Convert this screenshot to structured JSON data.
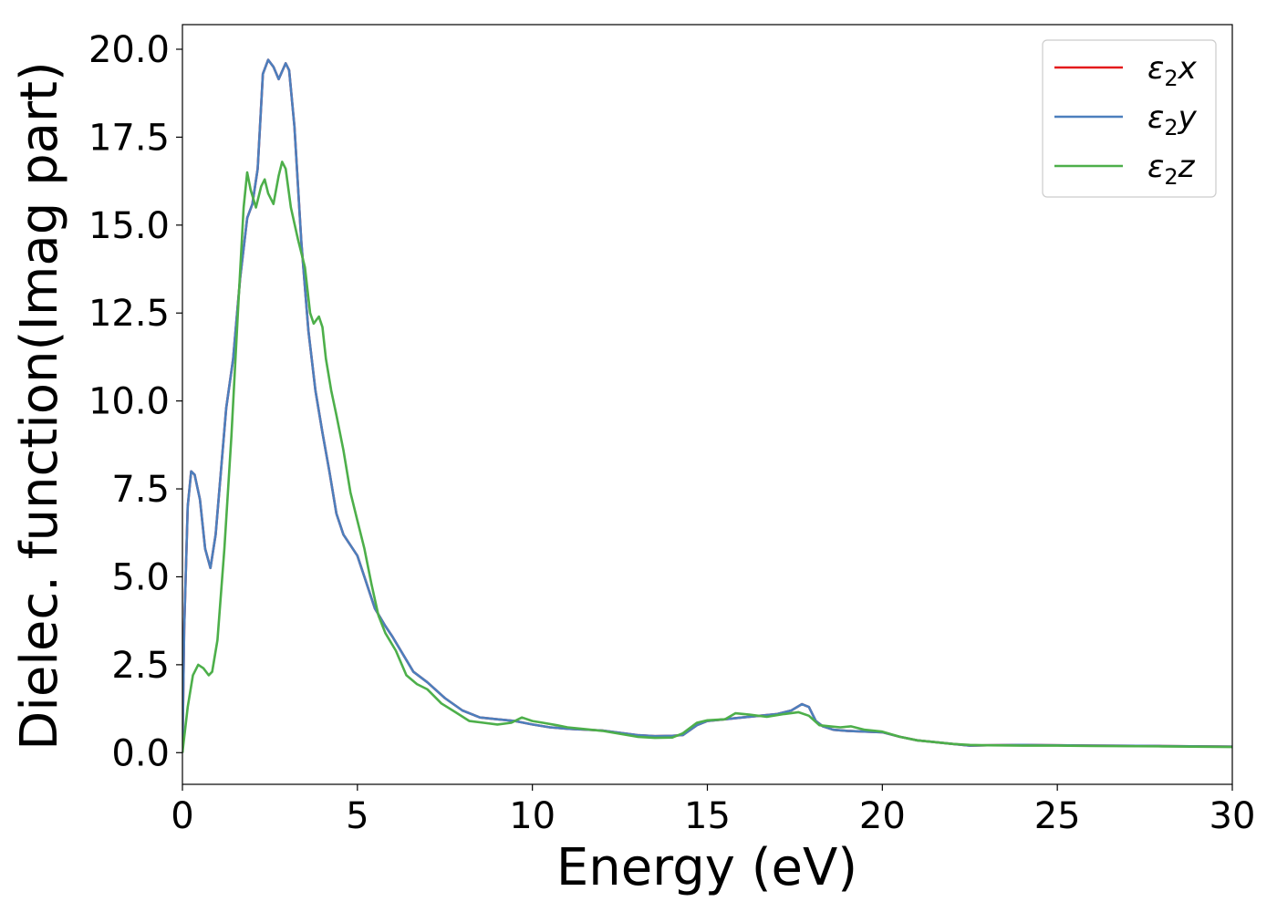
{
  "chart_data": {
    "type": "line",
    "title": "",
    "xlabel": "Energy (eV)",
    "ylabel": "Dielec. function(Imag part)",
    "xlim": [
      0,
      30
    ],
    "ylim": [
      -0.9,
      20.7
    ],
    "xticks": [
      0,
      5,
      10,
      15,
      20,
      25,
      30
    ],
    "xtick_labels": [
      "0",
      "5",
      "10",
      "15",
      "20",
      "25",
      "30"
    ],
    "yticks": [
      0,
      2.5,
      5,
      7.5,
      10,
      12.5,
      15,
      17.5,
      20
    ],
    "ytick_labels": [
      "0.0",
      "2.5",
      "5.0",
      "7.5",
      "10.0",
      "12.5",
      "15.0",
      "17.5",
      "20.0"
    ],
    "grid": false,
    "legend_position": "top-right",
    "series": [
      {
        "name": "ε₂x",
        "legend_main": "ε",
        "legend_sub": "2",
        "legend_axis": "x",
        "color": "#e41a1c",
        "points": [
          [
            0.0,
            0.0
          ],
          [
            0.05,
            3.5
          ],
          [
            0.15,
            7.0
          ],
          [
            0.25,
            8.0
          ],
          [
            0.35,
            7.9
          ],
          [
            0.5,
            7.2
          ],
          [
            0.65,
            5.8
          ],
          [
            0.8,
            5.25
          ],
          [
            0.95,
            6.2
          ],
          [
            1.1,
            8.0
          ],
          [
            1.25,
            9.8
          ],
          [
            1.45,
            11.2
          ],
          [
            1.65,
            13.5
          ],
          [
            1.85,
            15.2
          ],
          [
            2.0,
            15.6
          ],
          [
            2.15,
            16.6
          ],
          [
            2.3,
            19.3
          ],
          [
            2.45,
            19.7
          ],
          [
            2.6,
            19.5
          ],
          [
            2.75,
            19.15
          ],
          [
            2.95,
            19.6
          ],
          [
            3.05,
            19.4
          ],
          [
            3.2,
            17.8
          ],
          [
            3.4,
            14.5
          ],
          [
            3.6,
            12.0
          ],
          [
            3.8,
            10.3
          ],
          [
            4.0,
            9.1
          ],
          [
            4.2,
            8.0
          ],
          [
            4.4,
            6.8
          ],
          [
            4.6,
            6.2
          ],
          [
            4.8,
            5.9
          ],
          [
            5.0,
            5.6
          ],
          [
            5.2,
            5.0
          ],
          [
            5.5,
            4.1
          ],
          [
            5.8,
            3.6
          ],
          [
            6.0,
            3.3
          ],
          [
            6.3,
            2.8
          ],
          [
            6.6,
            2.3
          ],
          [
            7.0,
            2.0
          ],
          [
            7.5,
            1.55
          ],
          [
            8.0,
            1.2
          ],
          [
            8.5,
            1.0
          ],
          [
            9.0,
            0.95
          ],
          [
            9.5,
            0.9
          ],
          [
            10.0,
            0.8
          ],
          [
            10.5,
            0.72
          ],
          [
            11.0,
            0.68
          ],
          [
            12.0,
            0.63
          ],
          [
            13.0,
            0.5
          ],
          [
            13.5,
            0.47
          ],
          [
            14.0,
            0.48
          ],
          [
            14.3,
            0.5
          ],
          [
            14.7,
            0.78
          ],
          [
            15.0,
            0.9
          ],
          [
            15.5,
            0.95
          ],
          [
            16.0,
            1.0
          ],
          [
            16.5,
            1.05
          ],
          [
            17.0,
            1.1
          ],
          [
            17.4,
            1.2
          ],
          [
            17.7,
            1.38
          ],
          [
            17.9,
            1.3
          ],
          [
            18.1,
            0.9
          ],
          [
            18.3,
            0.75
          ],
          [
            18.6,
            0.65
          ],
          [
            19.0,
            0.62
          ],
          [
            19.5,
            0.6
          ],
          [
            20.0,
            0.58
          ],
          [
            20.5,
            0.45
          ],
          [
            21.0,
            0.35
          ],
          [
            22.0,
            0.25
          ],
          [
            22.5,
            0.2
          ],
          [
            23.0,
            0.21
          ],
          [
            24.0,
            0.22
          ],
          [
            25.0,
            0.21
          ],
          [
            26.0,
            0.2
          ],
          [
            28.0,
            0.19
          ],
          [
            30.0,
            0.17
          ]
        ]
      },
      {
        "name": "ε₂y",
        "legend_main": "ε",
        "legend_sub": "2",
        "legend_axis": "y",
        "color": "#4c7fbd",
        "points": [
          [
            0.0,
            0.0
          ],
          [
            0.05,
            3.5
          ],
          [
            0.15,
            7.0
          ],
          [
            0.25,
            8.0
          ],
          [
            0.35,
            7.9
          ],
          [
            0.5,
            7.2
          ],
          [
            0.65,
            5.8
          ],
          [
            0.8,
            5.25
          ],
          [
            0.95,
            6.2
          ],
          [
            1.1,
            8.0
          ],
          [
            1.25,
            9.8
          ],
          [
            1.45,
            11.2
          ],
          [
            1.65,
            13.5
          ],
          [
            1.85,
            15.2
          ],
          [
            2.0,
            15.6
          ],
          [
            2.15,
            16.6
          ],
          [
            2.3,
            19.3
          ],
          [
            2.45,
            19.7
          ],
          [
            2.6,
            19.5
          ],
          [
            2.75,
            19.15
          ],
          [
            2.95,
            19.6
          ],
          [
            3.05,
            19.4
          ],
          [
            3.2,
            17.8
          ],
          [
            3.4,
            14.5
          ],
          [
            3.6,
            12.0
          ],
          [
            3.8,
            10.3
          ],
          [
            4.0,
            9.1
          ],
          [
            4.2,
            8.0
          ],
          [
            4.4,
            6.8
          ],
          [
            4.6,
            6.2
          ],
          [
            4.8,
            5.9
          ],
          [
            5.0,
            5.6
          ],
          [
            5.2,
            5.0
          ],
          [
            5.5,
            4.1
          ],
          [
            5.8,
            3.6
          ],
          [
            6.0,
            3.3
          ],
          [
            6.3,
            2.8
          ],
          [
            6.6,
            2.3
          ],
          [
            7.0,
            2.0
          ],
          [
            7.5,
            1.55
          ],
          [
            8.0,
            1.2
          ],
          [
            8.5,
            1.0
          ],
          [
            9.0,
            0.95
          ],
          [
            9.5,
            0.9
          ],
          [
            10.0,
            0.8
          ],
          [
            10.5,
            0.72
          ],
          [
            11.0,
            0.68
          ],
          [
            12.0,
            0.63
          ],
          [
            13.0,
            0.5
          ],
          [
            13.5,
            0.47
          ],
          [
            14.0,
            0.48
          ],
          [
            14.3,
            0.5
          ],
          [
            14.7,
            0.78
          ],
          [
            15.0,
            0.9
          ],
          [
            15.5,
            0.95
          ],
          [
            16.0,
            1.0
          ],
          [
            16.5,
            1.05
          ],
          [
            17.0,
            1.1
          ],
          [
            17.4,
            1.2
          ],
          [
            17.7,
            1.38
          ],
          [
            17.9,
            1.3
          ],
          [
            18.1,
            0.9
          ],
          [
            18.3,
            0.75
          ],
          [
            18.6,
            0.65
          ],
          [
            19.0,
            0.62
          ],
          [
            19.5,
            0.6
          ],
          [
            20.0,
            0.58
          ],
          [
            20.5,
            0.45
          ],
          [
            21.0,
            0.35
          ],
          [
            22.0,
            0.25
          ],
          [
            22.5,
            0.2
          ],
          [
            23.0,
            0.21
          ],
          [
            24.0,
            0.22
          ],
          [
            25.0,
            0.21
          ],
          [
            26.0,
            0.2
          ],
          [
            28.0,
            0.19
          ],
          [
            30.0,
            0.17
          ]
        ]
      },
      {
        "name": "ε₂z",
        "legend_main": "ε",
        "legend_sub": "2",
        "legend_axis": "z",
        "color": "#4daf4a",
        "points": [
          [
            0.0,
            0.0
          ],
          [
            0.15,
            1.3
          ],
          [
            0.3,
            2.2
          ],
          [
            0.45,
            2.5
          ],
          [
            0.6,
            2.4
          ],
          [
            0.75,
            2.2
          ],
          [
            0.85,
            2.3
          ],
          [
            1.0,
            3.2
          ],
          [
            1.2,
            5.8
          ],
          [
            1.4,
            9.0
          ],
          [
            1.6,
            12.8
          ],
          [
            1.75,
            15.5
          ],
          [
            1.85,
            16.5
          ],
          [
            1.95,
            16.0
          ],
          [
            2.1,
            15.5
          ],
          [
            2.25,
            16.1
          ],
          [
            2.35,
            16.3
          ],
          [
            2.45,
            15.9
          ],
          [
            2.6,
            15.6
          ],
          [
            2.75,
            16.4
          ],
          [
            2.85,
            16.8
          ],
          [
            2.95,
            16.6
          ],
          [
            3.1,
            15.5
          ],
          [
            3.3,
            14.6
          ],
          [
            3.5,
            13.8
          ],
          [
            3.65,
            12.5
          ],
          [
            3.75,
            12.2
          ],
          [
            3.9,
            12.4
          ],
          [
            4.0,
            12.1
          ],
          [
            4.1,
            11.2
          ],
          [
            4.25,
            10.3
          ],
          [
            4.4,
            9.6
          ],
          [
            4.6,
            8.6
          ],
          [
            4.8,
            7.4
          ],
          [
            5.0,
            6.6
          ],
          [
            5.2,
            5.8
          ],
          [
            5.4,
            4.8
          ],
          [
            5.6,
            3.9
          ],
          [
            5.8,
            3.4
          ],
          [
            6.1,
            2.9
          ],
          [
            6.4,
            2.2
          ],
          [
            6.7,
            1.95
          ],
          [
            7.0,
            1.8
          ],
          [
            7.4,
            1.4
          ],
          [
            7.8,
            1.15
          ],
          [
            8.2,
            0.9
          ],
          [
            8.6,
            0.85
          ],
          [
            9.0,
            0.8
          ],
          [
            9.4,
            0.85
          ],
          [
            9.7,
            1.0
          ],
          [
            10.0,
            0.9
          ],
          [
            10.3,
            0.85
          ],
          [
            10.7,
            0.78
          ],
          [
            11.0,
            0.72
          ],
          [
            12.0,
            0.62
          ],
          [
            13.0,
            0.45
          ],
          [
            13.5,
            0.42
          ],
          [
            14.0,
            0.43
          ],
          [
            14.3,
            0.55
          ],
          [
            14.7,
            0.85
          ],
          [
            15.0,
            0.92
          ],
          [
            15.5,
            0.95
          ],
          [
            15.8,
            1.12
          ],
          [
            16.2,
            1.08
          ],
          [
            16.7,
            1.02
          ],
          [
            17.2,
            1.1
          ],
          [
            17.6,
            1.15
          ],
          [
            17.9,
            1.05
          ],
          [
            18.2,
            0.78
          ],
          [
            18.5,
            0.75
          ],
          [
            18.8,
            0.72
          ],
          [
            19.1,
            0.75
          ],
          [
            19.5,
            0.65
          ],
          [
            20.0,
            0.6
          ],
          [
            20.5,
            0.45
          ],
          [
            21.0,
            0.35
          ],
          [
            22.0,
            0.25
          ],
          [
            22.5,
            0.22
          ],
          [
            23.0,
            0.21
          ],
          [
            24.0,
            0.2
          ],
          [
            25.0,
            0.2
          ],
          [
            26.0,
            0.19
          ],
          [
            28.0,
            0.18
          ],
          [
            30.0,
            0.16
          ]
        ]
      }
    ]
  }
}
